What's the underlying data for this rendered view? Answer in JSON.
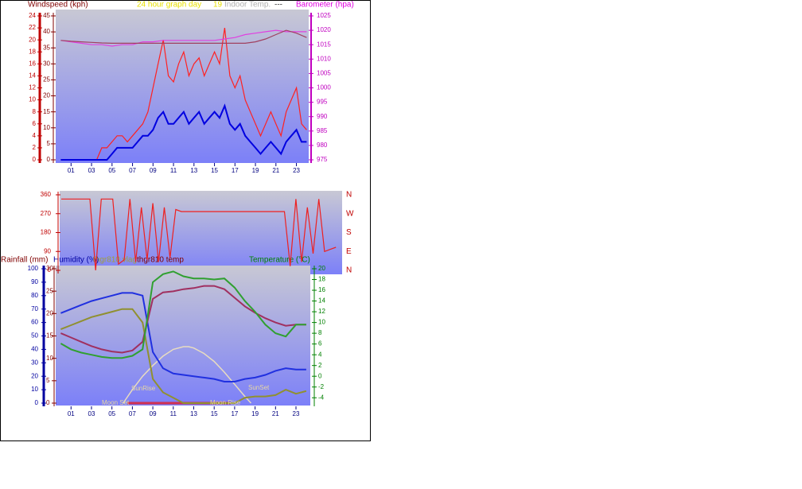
{
  "chart_data": [
    {
      "type": "line",
      "title": "24 hour graph day",
      "subtitle": "19",
      "indoor_label": "Indoor Temp.",
      "indoor_value": "---",
      "ylabel": "Windspeed (kph)",
      "y2label": "Barometer (hpa)",
      "xlim": [
        -0.5,
        24.2
      ],
      "xticks": [
        {
          "value": 1,
          "label": "01"
        },
        {
          "value": 3,
          "label": "03"
        },
        {
          "value": 5,
          "label": "05"
        },
        {
          "value": 7,
          "label": "07"
        },
        {
          "value": 9,
          "label": "09"
        },
        {
          "value": 11,
          "label": "11"
        },
        {
          "value": 13,
          "label": "13"
        },
        {
          "value": 15,
          "label": "15"
        },
        {
          "value": 17,
          "label": "17"
        },
        {
          "value": 19,
          "label": "19"
        },
        {
          "value": 21,
          "label": "21"
        },
        {
          "value": 23,
          "label": "23"
        }
      ],
      "ylim": [
        0,
        24
      ],
      "yticks": [
        0,
        2,
        4,
        6,
        8,
        10,
        12,
        14,
        16,
        18,
        20,
        22,
        24
      ],
      "ylim_alt": [
        0,
        45
      ],
      "yticks_alt": [
        0,
        5,
        10,
        15,
        20,
        25,
        30,
        35,
        40,
        45
      ],
      "y2lim": [
        975,
        1025
      ],
      "y2ticks": [
        975,
        980,
        985,
        990,
        995,
        1000,
        1005,
        1010,
        1015,
        1020,
        1025
      ],
      "series": [
        {
          "color": "#ff2020",
          "axis": "y",
          "x": [
            0,
            0.5,
            1,
            1.5,
            2,
            2.5,
            3,
            3.5,
            4,
            4.5,
            5,
            5.5,
            6,
            6.5,
            7,
            7.5,
            8,
            8.5,
            9,
            9.5,
            10,
            10.5,
            11,
            11.5,
            12,
            12.5,
            13,
            13.5,
            14,
            14.5,
            15,
            15.5,
            16,
            16.5,
            17,
            17.5,
            18,
            18.5,
            19,
            19.5,
            20,
            20.5,
            21,
            21.5,
            22,
            22.5,
            23,
            23.5,
            24
          ],
          "values": [
            0,
            0,
            0,
            0,
            0,
            0,
            0,
            0,
            2,
            2,
            3,
            4,
            4,
            3,
            4,
            5,
            6,
            8,
            12,
            16,
            20,
            14,
            13,
            16,
            18,
            14,
            16,
            17,
            14,
            16,
            18,
            16,
            22,
            14,
            12,
            14,
            10,
            8,
            6,
            4,
            6,
            8,
            6,
            4,
            8,
            10,
            12,
            6,
            5
          ]
        },
        {
          "color": "#0000e0",
          "axis": "y",
          "x": [
            0,
            0.5,
            1,
            1.5,
            2,
            2.5,
            3,
            3.5,
            4,
            4.5,
            5,
            5.5,
            6,
            6.5,
            7,
            7.5,
            8,
            8.5,
            9,
            9.5,
            10,
            10.5,
            11,
            11.5,
            12,
            12.5,
            13,
            13.5,
            14,
            14.5,
            15,
            15.5,
            16,
            16.5,
            17,
            17.5,
            18,
            18.5,
            19,
            19.5,
            20,
            20.5,
            21,
            21.5,
            22,
            22.5,
            23,
            23.5,
            24
          ],
          "values": [
            0,
            0,
            0,
            0,
            0,
            0,
            0,
            0,
            0,
            0,
            1,
            2,
            2,
            2,
            2,
            3,
            4,
            4,
            5,
            7,
            8,
            6,
            6,
            7,
            8,
            6,
            7,
            8,
            6,
            7,
            8,
            7,
            9,
            6,
            5,
            6,
            4,
            3,
            2,
            1,
            2,
            3,
            2,
            1,
            3,
            4,
            5,
            3,
            3
          ]
        },
        {
          "color": "#e040e0",
          "axis": "y2",
          "x": [
            0,
            1,
            2,
            3,
            4,
            5,
            6,
            7,
            8,
            9,
            10,
            11,
            12,
            13,
            14,
            15,
            16,
            17,
            18,
            19,
            20,
            21,
            22,
            23,
            24
          ],
          "values": [
            1016.5,
            1016,
            1015.5,
            1015,
            1015,
            1014.5,
            1015,
            1015,
            1016,
            1016,
            1016.5,
            1016.5,
            1016.5,
            1016.5,
            1016.5,
            1016.5,
            1017,
            1017.5,
            1018.5,
            1019,
            1019.5,
            1020,
            1019.5,
            1019.5,
            1019.5
          ]
        },
        {
          "color": "#a04060",
          "axis": "y2",
          "x": [
            0,
            1,
            2,
            3,
            4,
            5,
            6,
            7,
            8,
            9,
            10,
            11,
            12,
            13,
            14,
            15,
            16,
            17,
            18,
            19,
            20,
            21,
            22,
            23,
            24
          ],
          "values": [
            1016.5,
            1016.2,
            1016,
            1015.8,
            1015.6,
            1015.5,
            1015.5,
            1015.5,
            1015.5,
            1015.5,
            1015.5,
            1015.5,
            1015.5,
            1015.5,
            1015.5,
            1015.5,
            1015.5,
            1015.5,
            1015.5,
            1016,
            1017,
            1018.5,
            1020,
            1019,
            1017.5
          ]
        }
      ]
    },
    {
      "type": "line",
      "xlim": [
        0,
        24.4
      ],
      "ylim": [
        0,
        360
      ],
      "yticks": [
        0,
        90,
        180,
        270,
        360
      ],
      "direction_labels": [
        "N",
        "E",
        "S",
        "W",
        "N"
      ],
      "series": [
        {
          "color": "#ee2020",
          "axis": "y",
          "x": [
            0,
            0.5,
            1,
            1.5,
            2,
            2.5,
            3,
            3.5,
            4,
            4.5,
            5,
            5.5,
            6,
            6.5,
            7,
            7.5,
            8,
            8.5,
            9,
            9.5,
            10,
            10.5,
            11,
            11.5,
            12,
            12.5,
            13,
            13.5,
            14,
            14.5,
            15,
            15.5,
            16,
            16.5,
            17,
            17.5,
            18,
            18.5,
            19,
            19.5,
            20,
            20.5,
            21,
            21.5,
            22,
            22.5,
            23,
            23.5,
            24
          ],
          "values": [
            340,
            340,
            340,
            340,
            340,
            340,
            0,
            340,
            340,
            340,
            30,
            50,
            340,
            40,
            300,
            50,
            320,
            40,
            300,
            60,
            290,
            280,
            280,
            280,
            280,
            280,
            280,
            280,
            280,
            280,
            280,
            280,
            280,
            280,
            280,
            280,
            280,
            280,
            280,
            280,
            20,
            340,
            40,
            300,
            80,
            340,
            90,
            100,
            110
          ]
        }
      ]
    },
    {
      "type": "line",
      "ylabel": "Rainfall (mm)",
      "ylabel_alt": "Humidity (%)",
      "y2label": "Temperature (°C)",
      "xlim": [
        -0.5,
        24.4
      ],
      "xticks": [
        {
          "value": 1,
          "label": "01"
        },
        {
          "value": 3,
          "label": "03"
        },
        {
          "value": 5,
          "label": "05"
        },
        {
          "value": 7,
          "label": "07"
        },
        {
          "value": 9,
          "label": "09"
        },
        {
          "value": 11,
          "label": "11"
        },
        {
          "value": 13,
          "label": "13"
        },
        {
          "value": 15,
          "label": "15"
        },
        {
          "value": 17,
          "label": "17"
        },
        {
          "value": 19,
          "label": "19"
        },
        {
          "value": 21,
          "label": "21"
        },
        {
          "value": 23,
          "label": "23"
        }
      ],
      "ylim": [
        0,
        30
      ],
      "yticks": [
        0,
        5,
        10,
        15,
        20,
        25,
        30
      ],
      "ylim_alt": [
        0,
        100
      ],
      "yticks_alt": [
        0,
        10,
        20,
        30,
        40,
        50,
        60,
        70,
        80,
        90,
        100
      ],
      "y2lim": [
        -5,
        20
      ],
      "y2ticks": [
        -4,
        -2,
        0,
        2,
        4,
        6,
        8,
        10,
        12,
        14,
        16,
        18,
        20
      ],
      "sun_curve": {
        "color": "#e8dcc0",
        "axis": "alt",
        "x": [
          6.1,
          7,
          8,
          9,
          10,
          11,
          12,
          12.5,
          13,
          14,
          15,
          16,
          17,
          18,
          18.6
        ],
        "values": [
          0,
          10,
          20,
          28,
          35,
          40,
          42,
          42,
          41,
          37,
          31,
          23,
          14,
          5,
          0
        ]
      },
      "moon_line": {
        "color": "#d03050",
        "axis": "alt",
        "x": [
          6.5,
          16.6
        ],
        "values": [
          0,
          0
        ]
      },
      "annotations": [
        "SunRise",
        "SunSet",
        "Moon Set",
        "Moon Rise"
      ],
      "series": [
        {
          "color": "#2030e0",
          "axis": "alt",
          "x": [
            0,
            1,
            2,
            3,
            4,
            5,
            6,
            7,
            8,
            9,
            10,
            11,
            12,
            13,
            14,
            15,
            16,
            17,
            18,
            19,
            20,
            21,
            22,
            23,
            24
          ],
          "values": [
            67,
            70,
            73,
            76,
            78,
            80,
            82,
            82,
            80,
            38,
            26,
            22,
            21,
            20,
            19,
            18,
            16,
            16,
            18,
            19,
            21,
            24,
            26,
            25,
            25
          ]
        },
        {
          "name": "thgr810 vlag",
          "color": "#909030",
          "axis": "alt",
          "x": [
            0,
            1,
            2,
            3,
            4,
            5,
            6,
            7,
            8,
            9,
            10,
            11,
            12,
            13,
            14,
            15,
            16,
            17,
            18,
            19,
            20,
            21,
            22,
            23,
            24
          ],
          "values": [
            55,
            58,
            61,
            64,
            66,
            68,
            70,
            70,
            60,
            18,
            8,
            4,
            0,
            0,
            0,
            0,
            0,
            0,
            4,
            5,
            5,
            6,
            10,
            7,
            9
          ]
        },
        {
          "name": "thgr810 temp",
          "color": "#a03060",
          "axis": "y2",
          "x": [
            0,
            1,
            2,
            3,
            4,
            5,
            6,
            7,
            8,
            9,
            10,
            11,
            12,
            13,
            14,
            15,
            16,
            17,
            18,
            19,
            20,
            21,
            22,
            23,
            24
          ],
          "values": [
            8,
            7.2,
            6.4,
            5.6,
            5,
            4.6,
            4.4,
            4.8,
            6.4,
            14.4,
            15.6,
            15.8,
            16.2,
            16.4,
            16.8,
            16.8,
            16.2,
            14.6,
            13,
            11.8,
            10.8,
            10,
            9.4,
            9.6,
            9.6
          ]
        },
        {
          "color": "#30a030",
          "axis": "y2",
          "x": [
            0,
            1,
            2,
            3,
            4,
            5,
            6,
            7,
            8,
            9,
            10,
            11,
            12,
            13,
            14,
            15,
            16,
            17,
            18,
            19,
            20,
            21,
            22,
            23,
            24
          ],
          "values": [
            6.1,
            5,
            4.4,
            4,
            3.6,
            3.4,
            3.4,
            3.8,
            5,
            17.5,
            19,
            19.5,
            18.6,
            18.2,
            18.2,
            18,
            18.2,
            16.5,
            14,
            12,
            9.6,
            8,
            7.4,
            9.6,
            9.6
          ]
        }
      ]
    }
  ]
}
